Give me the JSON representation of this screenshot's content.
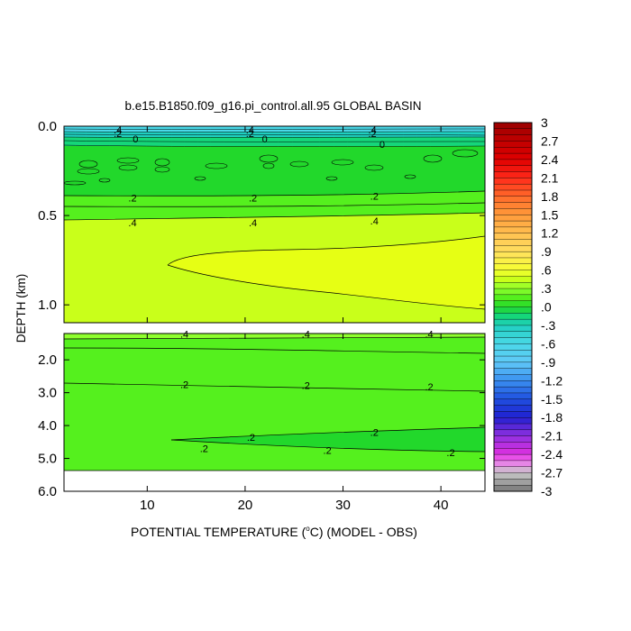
{
  "chart_data": {
    "type": "heatmap",
    "title": "b.e15.B1850.f09_g16.pi_control.all.95 GLOBAL BASIN",
    "xlabel_pre": "POTENTIAL TEMPERATURE (",
    "xlabel_deg": "o",
    "xlabel_post": "C) (MODEL - OBS)",
    "ylabel": "DEPTH (km)",
    "xlim": [
      1.5,
      44.5
    ],
    "x_ticks": [
      10,
      20,
      30,
      40
    ],
    "top_panel": {
      "ylim": [
        0.0,
        1.1
      ],
      "y_ticks": [
        "0.0",
        "0.5",
        "1.0"
      ],
      "y_tick_values": [
        0.0,
        0.5,
        1.0
      ]
    },
    "bottom_panel": {
      "ylim": [
        1.2,
        6.0
      ],
      "y_ticks": [
        "2.0",
        "3.0",
        "4.0",
        "5.0",
        "6.0"
      ],
      "y_tick_values": [
        2.0,
        3.0,
        4.0,
        5.0,
        6.0
      ],
      "data_max_depth": 5.3
    },
    "colorbar": {
      "range": [
        -3,
        3
      ],
      "labels": [
        "3",
        "2.7",
        "2.4",
        "2.1",
        "1.8",
        "1.5",
        "1.2",
        ".9",
        ".6",
        ".3",
        ".0",
        "-.3",
        "-.6",
        "-.9",
        "-1.2",
        "-1.5",
        "-1.8",
        "-2.1",
        "-2.4",
        "-2.7",
        "-3"
      ]
    },
    "contour_labels_top": [
      {
        "text": ".4",
        "x": 7,
        "y": 0.02
      },
      {
        "text": ".2",
        "x": 7,
        "y": 0.04
      },
      {
        "text": "0",
        "x": 8.8,
        "y": 0.07
      },
      {
        "text": ".4",
        "x": 20.5,
        "y": 0.02
      },
      {
        "text": ".2",
        "x": 20.5,
        "y": 0.04
      },
      {
        "text": "0",
        "x": 22,
        "y": 0.07
      },
      {
        "text": ".4",
        "x": 33,
        "y": 0.02
      },
      {
        "text": ".2",
        "x": 33,
        "y": 0.04
      },
      {
        "text": "0",
        "x": 34,
        "y": 0.1
      },
      {
        "text": ".2",
        "x": 8.5,
        "y": 0.4
      },
      {
        "text": ".2",
        "x": 20.8,
        "y": 0.4
      },
      {
        "text": ".2",
        "x": 33.2,
        "y": 0.39
      },
      {
        "text": ".4",
        "x": 8.5,
        "y": 0.54
      },
      {
        "text": ".4",
        "x": 20.8,
        "y": 0.54
      },
      {
        "text": ".4",
        "x": 33.2,
        "y": 0.53
      }
    ],
    "contour_labels_bottom": [
      {
        "text": ".4",
        "x": 13.8,
        "y": 1.22
      },
      {
        "text": ".4",
        "x": 26.2,
        "y": 1.22
      },
      {
        "text": ".4",
        "x": 38.8,
        "y": 1.22
      },
      {
        "text": ".2",
        "x": 13.8,
        "y": 2.75
      },
      {
        "text": ".2",
        "x": 26.2,
        "y": 2.78
      },
      {
        "text": ".2",
        "x": 38.8,
        "y": 2.82
      },
      {
        "text": ".2",
        "x": 20.6,
        "y": 4.35
      },
      {
        "text": ".2",
        "x": 33.2,
        "y": 4.2
      },
      {
        "text": ".2",
        "x": 15.8,
        "y": 4.7
      },
      {
        "text": ".2",
        "x": 28.4,
        "y": 4.75
      },
      {
        "text": ".2",
        "x": 41.0,
        "y": 4.82
      }
    ]
  }
}
